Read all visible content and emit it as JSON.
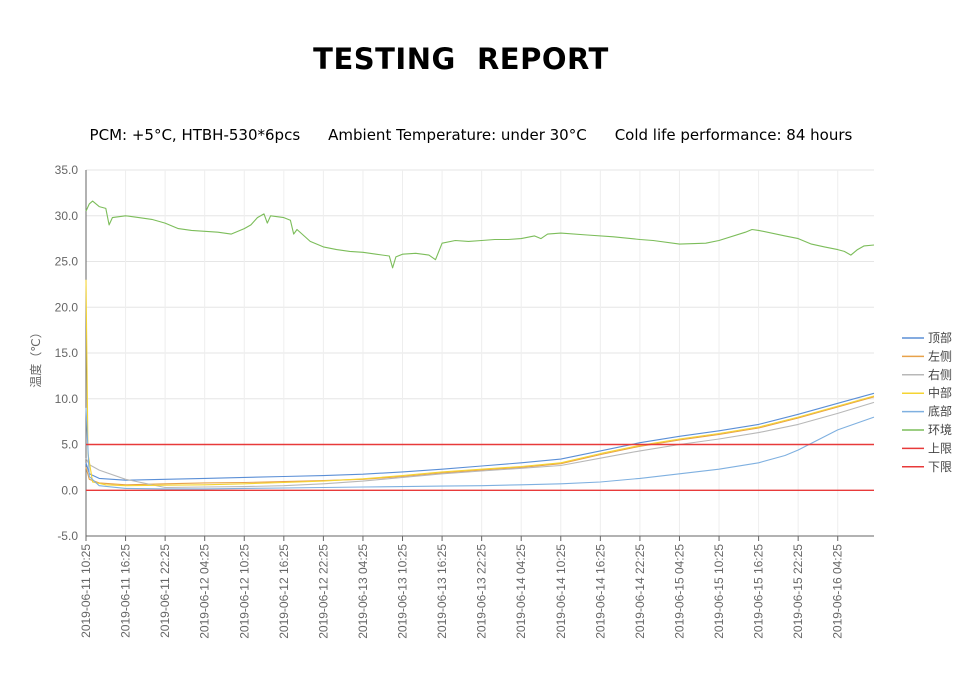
{
  "header": {
    "title": "TESTING  REPORT",
    "info": [
      "PCM: +5°C, HTBH-530*6pcs",
      "Ambient Temperature: under 30°C",
      "Cold life performance: 84 hours"
    ]
  },
  "chart_data": {
    "type": "line",
    "title": "",
    "xlabel": "",
    "ylabel": "温度（℃）",
    "ylim": [
      -5,
      35
    ],
    "yticks": [
      "35.0",
      "30.0",
      "25.0",
      "20.0",
      "15.0",
      "10.0",
      "5.0",
      "0.0",
      "-5.0"
    ],
    "x_ticks": [
      "2019-06-11 10:25",
      "2019-06-11 16:25",
      "2019-06-11 22:25",
      "2019-06-12 04:25",
      "2019-06-12 10:25",
      "2019-06-12 16:25",
      "2019-06-12 22:25",
      "2019-06-13 04:25",
      "2019-06-13 10:25",
      "2019-06-13 16:25",
      "2019-06-13 22:25",
      "2019-06-14 04:25",
      "2019-06-14 10:25",
      "2019-06-14 16:25",
      "2019-06-14 22:25",
      "2019-06-15 04:25",
      "2019-06-15 10:25",
      "2019-06-15 16:25",
      "2019-06-15 22:25",
      "2019-06-16 04:25"
    ],
    "x_hours": [
      0,
      6,
      12,
      18,
      24,
      30,
      36,
      42,
      48,
      54,
      60,
      66,
      72,
      78,
      84,
      90,
      96,
      102,
      108,
      114
    ],
    "xlim_hours": [
      0,
      119.5
    ],
    "grid": true,
    "legend_position": "right",
    "series": [
      {
        "name": "顶部",
        "color": "#5b8fd6",
        "points": [
          [
            0,
            3
          ],
          [
            0.5,
            1.8
          ],
          [
            2,
            1.3
          ],
          [
            6,
            1.1
          ],
          [
            12,
            1.2
          ],
          [
            18,
            1.3
          ],
          [
            24,
            1.4
          ],
          [
            30,
            1.5
          ],
          [
            36,
            1.6
          ],
          [
            42,
            1.75
          ],
          [
            48,
            2
          ],
          [
            54,
            2.3
          ],
          [
            60,
            2.65
          ],
          [
            66,
            3
          ],
          [
            72,
            3.4
          ],
          [
            78,
            4.3
          ],
          [
            84,
            5.2
          ],
          [
            90,
            5.9
          ],
          [
            96,
            6.5
          ],
          [
            102,
            7.2
          ],
          [
            108,
            8.3
          ],
          [
            114,
            9.5
          ],
          [
            119.5,
            10.6
          ]
        ]
      },
      {
        "name": "左侧",
        "color": "#e8a24a",
        "points": [
          [
            0,
            2.5
          ],
          [
            0.5,
            1.2
          ],
          [
            2,
            0.8
          ],
          [
            6,
            0.6
          ],
          [
            12,
            0.7
          ],
          [
            18,
            0.8
          ],
          [
            24,
            0.85
          ],
          [
            30,
            0.95
          ],
          [
            36,
            1.05
          ],
          [
            42,
            1.2
          ],
          [
            48,
            1.5
          ],
          [
            54,
            1.9
          ],
          [
            60,
            2.2
          ],
          [
            66,
            2.5
          ],
          [
            72,
            2.9
          ],
          [
            78,
            3.9
          ],
          [
            84,
            4.8
          ],
          [
            90,
            5.5
          ],
          [
            96,
            6.1
          ],
          [
            102,
            6.8
          ],
          [
            108,
            7.9
          ],
          [
            114,
            9.1
          ],
          [
            119.5,
            10.2
          ]
        ]
      },
      {
        "name": "右侧",
        "color": "#b8b8b8",
        "points": [
          [
            0,
            3.5
          ],
          [
            0.5,
            2.8
          ],
          [
            2,
            2.2
          ],
          [
            6,
            1.2
          ],
          [
            12,
            0.3
          ],
          [
            18,
            0.35
          ],
          [
            24,
            0.4
          ],
          [
            30,
            0.5
          ],
          [
            36,
            0.7
          ],
          [
            42,
            1.0
          ],
          [
            48,
            1.4
          ],
          [
            54,
            1.8
          ],
          [
            60,
            2.1
          ],
          [
            66,
            2.4
          ],
          [
            72,
            2.7
          ],
          [
            78,
            3.5
          ],
          [
            84,
            4.3
          ],
          [
            90,
            5.0
          ],
          [
            96,
            5.6
          ],
          [
            102,
            6.3
          ],
          [
            108,
            7.2
          ],
          [
            114,
            8.4
          ],
          [
            119.5,
            9.6
          ]
        ]
      },
      {
        "name": "中部",
        "color": "#f5d432",
        "points": [
          [
            0,
            23
          ],
          [
            0.3,
            4
          ],
          [
            1,
            0.9
          ],
          [
            3,
            0.6
          ],
          [
            6,
            0.5
          ],
          [
            12,
            0.55
          ],
          [
            18,
            0.6
          ],
          [
            24,
            0.7
          ],
          [
            30,
            0.85
          ],
          [
            36,
            1.0
          ],
          [
            42,
            1.25
          ],
          [
            48,
            1.6
          ],
          [
            54,
            2.0
          ],
          [
            60,
            2.3
          ],
          [
            66,
            2.6
          ],
          [
            72,
            3.0
          ],
          [
            78,
            4.0
          ],
          [
            84,
            4.9
          ],
          [
            90,
            5.6
          ],
          [
            96,
            6.2
          ],
          [
            102,
            6.9
          ],
          [
            108,
            8.0
          ],
          [
            114,
            9.2
          ],
          [
            119.5,
            10.3
          ]
        ]
      },
      {
        "name": "底部",
        "color": "#7fb0e0",
        "points": [
          [
            0,
            9
          ],
          [
            0.5,
            1.5
          ],
          [
            2,
            0.5
          ],
          [
            6,
            0.2
          ],
          [
            12,
            0.15
          ],
          [
            18,
            0.15
          ],
          [
            24,
            0.2
          ],
          [
            30,
            0.25
          ],
          [
            36,
            0.3
          ],
          [
            42,
            0.35
          ],
          [
            48,
            0.4
          ],
          [
            54,
            0.45
          ],
          [
            60,
            0.5
          ],
          [
            66,
            0.6
          ],
          [
            72,
            0.7
          ],
          [
            78,
            0.9
          ],
          [
            84,
            1.3
          ],
          [
            90,
            1.8
          ],
          [
            96,
            2.3
          ],
          [
            102,
            3.0
          ],
          [
            106,
            3.8
          ],
          [
            108,
            4.4
          ],
          [
            114,
            6.6
          ],
          [
            119.5,
            8.0
          ]
        ]
      },
      {
        "name": "环境",
        "color": "#7cbd5a",
        "points": [
          [
            0,
            30.5
          ],
          [
            0.5,
            31.3
          ],
          [
            1,
            31.6
          ],
          [
            2,
            31
          ],
          [
            3,
            30.8
          ],
          [
            3.5,
            29
          ],
          [
            4,
            29.8
          ],
          [
            6,
            30
          ],
          [
            8,
            29.8
          ],
          [
            10,
            29.6
          ],
          [
            12,
            29.2
          ],
          [
            14,
            28.6
          ],
          [
            16,
            28.4
          ],
          [
            18,
            28.3
          ],
          [
            20,
            28.2
          ],
          [
            22,
            28.0
          ],
          [
            24,
            28.6
          ],
          [
            25,
            29
          ],
          [
            26,
            29.8
          ],
          [
            27,
            30.2
          ],
          [
            27.5,
            29.2
          ],
          [
            28,
            30.0
          ],
          [
            30,
            29.8
          ],
          [
            31,
            29.5
          ],
          [
            31.5,
            28
          ],
          [
            32,
            28.5
          ],
          [
            34,
            27.2
          ],
          [
            36,
            26.6
          ],
          [
            38,
            26.3
          ],
          [
            40,
            26.1
          ],
          [
            42,
            26.0
          ],
          [
            44,
            25.8
          ],
          [
            46,
            25.6
          ],
          [
            46.5,
            24.3
          ],
          [
            47,
            25.5
          ],
          [
            48,
            25.8
          ],
          [
            50,
            25.9
          ],
          [
            52,
            25.7
          ],
          [
            53,
            25.2
          ],
          [
            54,
            27.0
          ],
          [
            56,
            27.3
          ],
          [
            58,
            27.2
          ],
          [
            60,
            27.3
          ],
          [
            62,
            27.4
          ],
          [
            64,
            27.4
          ],
          [
            66,
            27.5
          ],
          [
            68,
            27.8
          ],
          [
            69,
            27.5
          ],
          [
            70,
            28.0
          ],
          [
            72,
            28.1
          ],
          [
            76,
            27.9
          ],
          [
            80,
            27.7
          ],
          [
            84,
            27.4
          ],
          [
            86,
            27.3
          ],
          [
            90,
            26.9
          ],
          [
            94,
            27.0
          ],
          [
            96,
            27.3
          ],
          [
            100,
            28.2
          ],
          [
            101,
            28.5
          ],
          [
            102,
            28.4
          ],
          [
            106,
            27.8
          ],
          [
            108,
            27.5
          ],
          [
            110,
            26.9
          ],
          [
            112,
            26.6
          ],
          [
            114,
            26.3
          ],
          [
            115,
            26.1
          ],
          [
            116,
            25.7
          ],
          [
            117,
            26.3
          ],
          [
            118,
            26.7
          ],
          [
            119.5,
            26.8
          ]
        ]
      },
      {
        "name": "上限",
        "color": "#e83a3a",
        "points": [
          [
            0,
            5
          ],
          [
            119.5,
            5
          ]
        ]
      },
      {
        "name": "下限",
        "color": "#e83a3a",
        "points": [
          [
            0,
            0
          ],
          [
            119.5,
            0
          ]
        ]
      }
    ]
  }
}
